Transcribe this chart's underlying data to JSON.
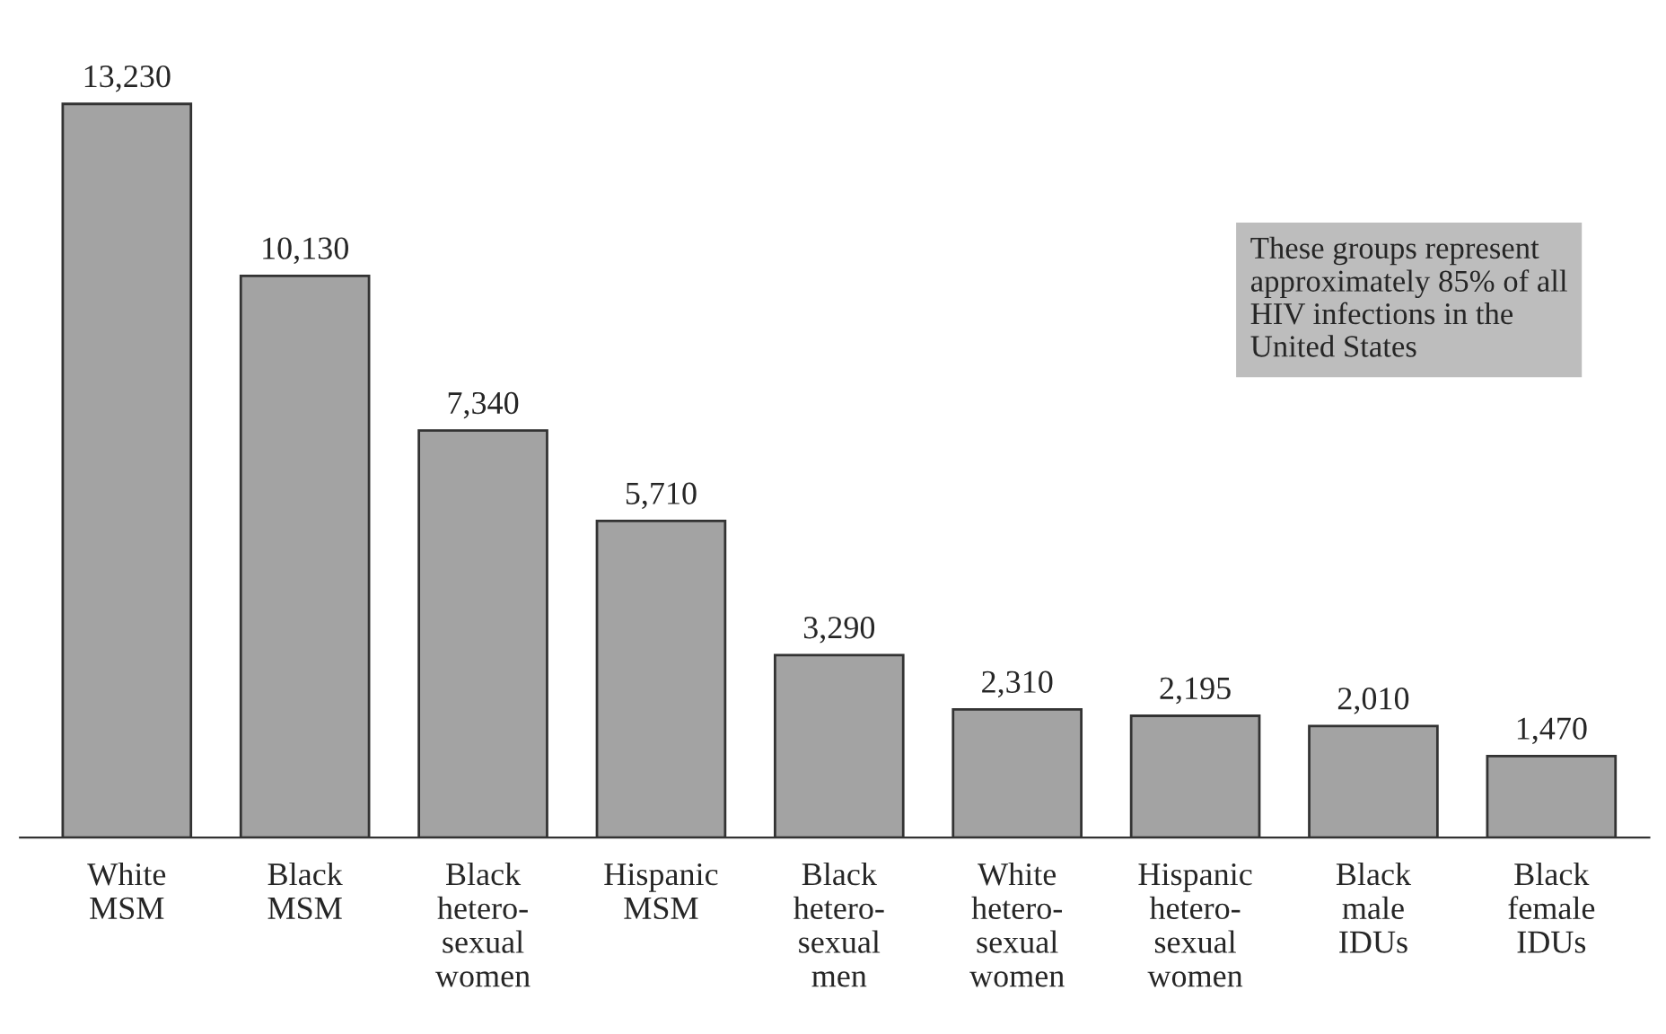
{
  "chart_data": {
    "type": "bar",
    "categories": [
      "White\nMSM",
      "Black\nMSM",
      "Black\nhetero-\nsexual\nwomen",
      "Hispanic\nMSM",
      "Black\nhetero-\nsexual\nmen",
      "White\nhetero-\nsexual\nwomen",
      "Hispanic\nhetero-\nsexual\nwomen",
      "Black\nmale\nIDUs",
      "Black\nfemale\nIDUs"
    ],
    "values": [
      13230,
      10130,
      7340,
      5710,
      3290,
      2310,
      2195,
      2010,
      1470
    ],
    "value_labels": [
      "13,230",
      "10,130",
      "7,340",
      "5,710",
      "3,290",
      "2,310",
      "2,195",
      "2,010",
      "1,470"
    ],
    "color": "#a3a3a3",
    "annotations": [
      "These groups represent\napproximately 85% of all\nHIV infections in the\nUnited States"
    ],
    "grid": false,
    "legend": false
  }
}
